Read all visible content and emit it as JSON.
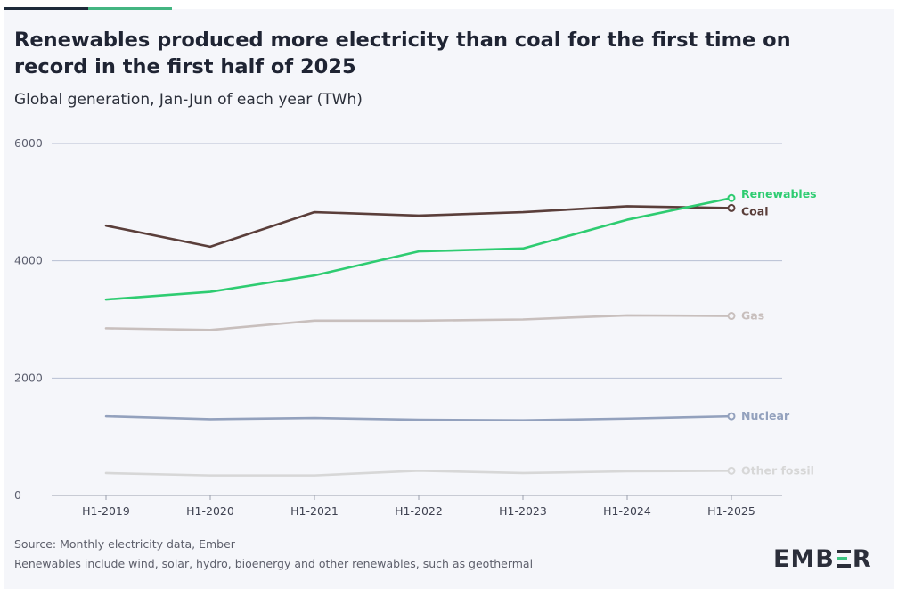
{
  "header": {
    "title": "Renewables produced more electricity than coal for the first time on record in the first half of 2025",
    "subtitle": "Global generation, Jan-Jun of each year (TWh)"
  },
  "footer": {
    "source": "Source: Monthly electricity data, Ember",
    "note": "Renewables include wind, solar, hydro, bioenergy and other renewables, such as geothermal"
  },
  "brand": {
    "logo_text": "EMBER",
    "colors": {
      "accent_dark": "#1e2a3a",
      "accent_green": "#43b581"
    }
  },
  "chart_data": {
    "type": "line",
    "title": "Renewables produced more electricity than coal for the first time on record in the first half of 2025",
    "subtitle": "Global generation, Jan-Jun of each year (TWh)",
    "x": [
      "H1-2019",
      "H1-2020",
      "H1-2021",
      "H1-2022",
      "H1-2023",
      "H1-2024",
      "H1-2025"
    ],
    "ylim": [
      0,
      6000
    ],
    "yticks": [
      0,
      2000,
      4000,
      6000
    ],
    "grid": true,
    "legend": "end-of-line labels",
    "series": [
      {
        "name": "Renewables",
        "color": "#2ecc71",
        "values": [
          3340,
          3470,
          3750,
          4160,
          4210,
          4700,
          5070
        ]
      },
      {
        "name": "Coal",
        "color": "#5a3e3a",
        "values": [
          4600,
          4240,
          4830,
          4770,
          4830,
          4930,
          4900
        ]
      },
      {
        "name": "Gas",
        "color": "#c8bfbd",
        "values": [
          2850,
          2820,
          2980,
          2980,
          3000,
          3070,
          3060
        ]
      },
      {
        "name": "Nuclear",
        "color": "#93a1bd",
        "values": [
          1350,
          1300,
          1320,
          1290,
          1280,
          1310,
          1350
        ]
      },
      {
        "name": "Other fossil",
        "color": "#d7d7d7",
        "values": [
          380,
          340,
          340,
          420,
          380,
          410,
          420
        ]
      }
    ]
  }
}
